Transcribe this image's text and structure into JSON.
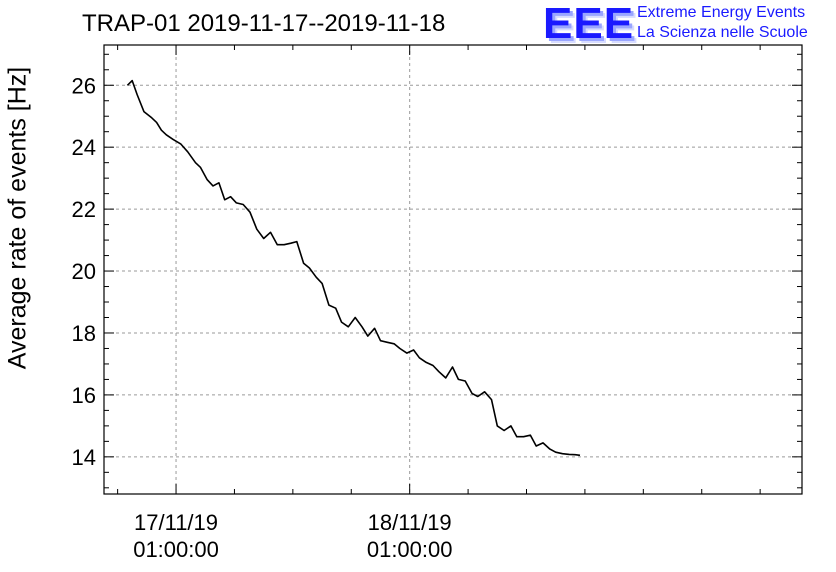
{
  "chart_data": {
    "type": "line",
    "title": "TRAP-01 2019-11-17--2019-11-18",
    "xlabel": "",
    "ylabel": "Average rate of events [Hz]",
    "ylim": [
      12.8,
      27.3
    ],
    "xlim_hours": [
      -2.4,
      69.3
    ],
    "yticks": [
      14,
      16,
      18,
      20,
      22,
      24,
      26
    ],
    "ytick_labels": [
      "14",
      "16",
      "18",
      "20",
      "22",
      "24",
      "26"
    ],
    "xticks_hours": [
      5.0,
      29.0
    ],
    "xtick_labels": [
      {
        "date": "17/11/19",
        "time": "01:00:00"
      },
      {
        "date": "18/11/19",
        "time": "01:00:00"
      }
    ],
    "grid": true,
    "series": [
      {
        "name": "rate",
        "color": "#000000",
        "x_hours": [
          0.0,
          0.5,
          1.0,
          1.7,
          2.5,
          3.0,
          3.5,
          4.0,
          4.7,
          5.5,
          6.2,
          7.0,
          7.5,
          8.2,
          8.8,
          9.4,
          10.0,
          10.6,
          11.2,
          11.9,
          12.6,
          13.3,
          14.0,
          14.7,
          15.4,
          16.1,
          16.8,
          17.4,
          18.1,
          18.7,
          19.4,
          20.0,
          20.7,
          21.4,
          22.0,
          22.7,
          23.4,
          24.1,
          24.7,
          25.4,
          26.0,
          26.7,
          27.4,
          28.0,
          28.7,
          29.4,
          30.0,
          30.7,
          31.4,
          32.0,
          32.7,
          33.4,
          34.0,
          34.7,
          35.4,
          36.0,
          36.7,
          37.4,
          38.0,
          38.7,
          39.4,
          40.0,
          40.7,
          41.4,
          42.0,
          42.7,
          43.4,
          44.0,
          44.7,
          45.4,
          46.0,
          46.5
        ],
        "values": [
          26.0,
          26.15,
          25.7,
          25.15,
          24.95,
          24.8,
          24.55,
          24.4,
          24.25,
          24.1,
          23.85,
          23.5,
          23.35,
          22.95,
          22.75,
          22.85,
          22.3,
          22.4,
          22.2,
          22.15,
          21.9,
          21.35,
          21.05,
          21.25,
          20.85,
          20.85,
          20.9,
          20.95,
          20.25,
          20.1,
          19.8,
          19.6,
          18.9,
          18.8,
          18.35,
          18.2,
          18.5,
          18.2,
          17.9,
          18.15,
          17.75,
          17.7,
          17.65,
          17.5,
          17.35,
          17.45,
          17.2,
          17.05,
          16.95,
          16.75,
          16.55,
          16.9,
          16.5,
          16.45,
          16.05,
          15.95,
          16.1,
          15.85,
          15.0,
          14.85,
          15.0,
          14.65,
          14.65,
          14.7,
          14.35,
          14.45,
          14.25,
          14.15,
          14.1,
          14.08,
          14.07,
          14.05
        ]
      }
    ]
  },
  "logo": {
    "mark": "EEE",
    "line1": "Extreme Energy Events",
    "line2": "La Scienza nelle Scuole",
    "color": "#1a1aff"
  }
}
